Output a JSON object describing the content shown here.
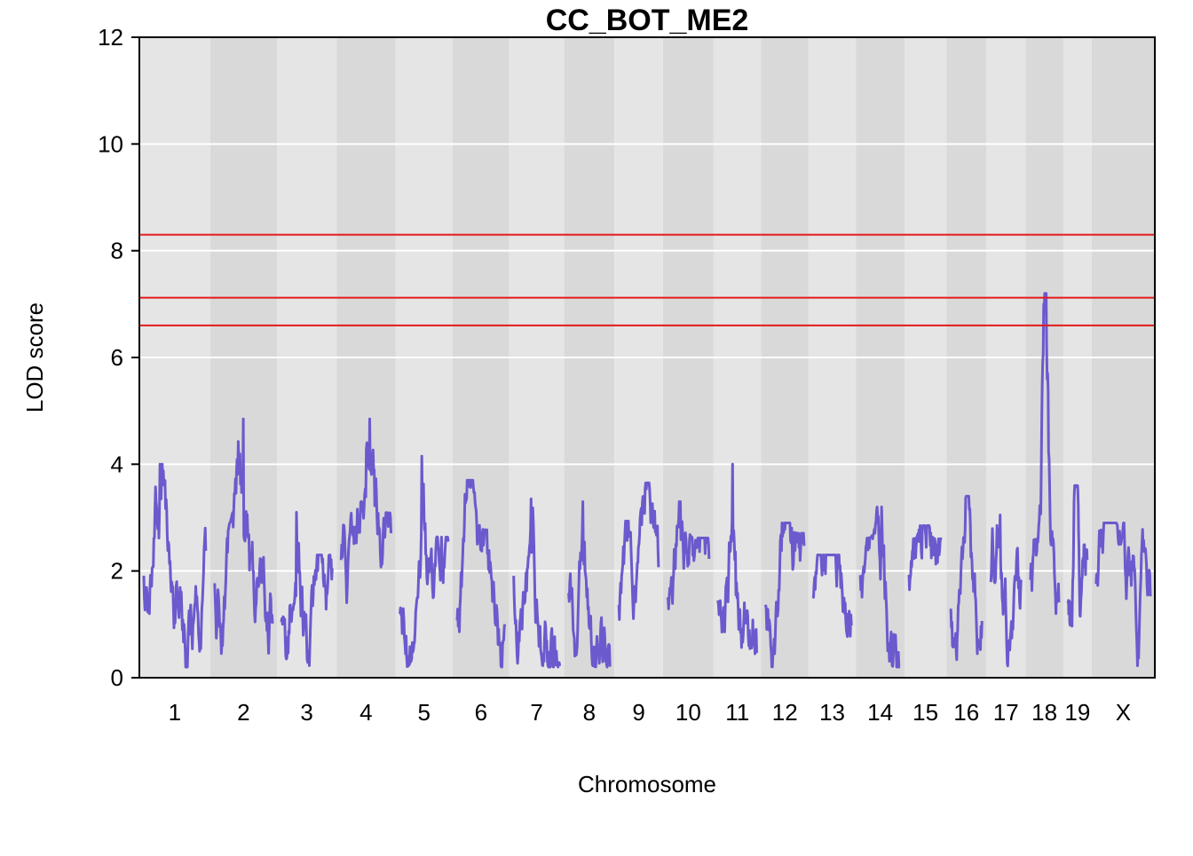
{
  "chart_data": {
    "type": "line",
    "title": "CC_BOT_ME2",
    "xlabel": "Chromosome",
    "ylabel": "LOD score",
    "ylim": [
      0,
      12
    ],
    "yticks": [
      0,
      2,
      4,
      6,
      8,
      10,
      12
    ],
    "grid": true,
    "legend": "none",
    "colors": {
      "line": "#6A5ACD",
      "threshold": "#E31A1C",
      "band_light": "#E5E5E5",
      "band_dark": "#D9D9D9",
      "grid": "#FFFFFF"
    },
    "thresholds": [
      8.3,
      7.12,
      6.6
    ],
    "chromosomes": [
      {
        "label": "1",
        "length": 195,
        "peak": 4.0
      },
      {
        "label": "2",
        "length": 182,
        "peak": 4.85
      },
      {
        "label": "3",
        "length": 160,
        "peak": 3.1
      },
      {
        "label": "4",
        "length": 157,
        "peak": 4.85
      },
      {
        "label": "5",
        "length": 152,
        "peak": 4.15
      },
      {
        "label": "6",
        "length": 150,
        "peak": 3.7
      },
      {
        "label": "7",
        "length": 145,
        "peak": 3.35
      },
      {
        "label": "8",
        "length": 130,
        "peak": 3.3
      },
      {
        "label": "9",
        "length": 125,
        "peak": 3.65
      },
      {
        "label": "10",
        "length": 131,
        "peak": 3.3
      },
      {
        "label": "11",
        "length": 122,
        "peak": 4.0
      },
      {
        "label": "12",
        "length": 121,
        "peak": 2.9
      },
      {
        "label": "13",
        "length": 121,
        "peak": 2.3
      },
      {
        "label": "14",
        "length": 125,
        "peak": 3.2
      },
      {
        "label": "15",
        "length": 104,
        "peak": 2.85
      },
      {
        "label": "16",
        "length": 98,
        "peak": 3.4
      },
      {
        "label": "17",
        "length": 95,
        "peak": 3.05
      },
      {
        "label": "18",
        "length": 91,
        "peak": 7.2
      },
      {
        "label": "19",
        "length": 61,
        "peak": 3.6
      },
      {
        "label": "X",
        "length": 171,
        "peak": 2.9
      }
    ]
  }
}
